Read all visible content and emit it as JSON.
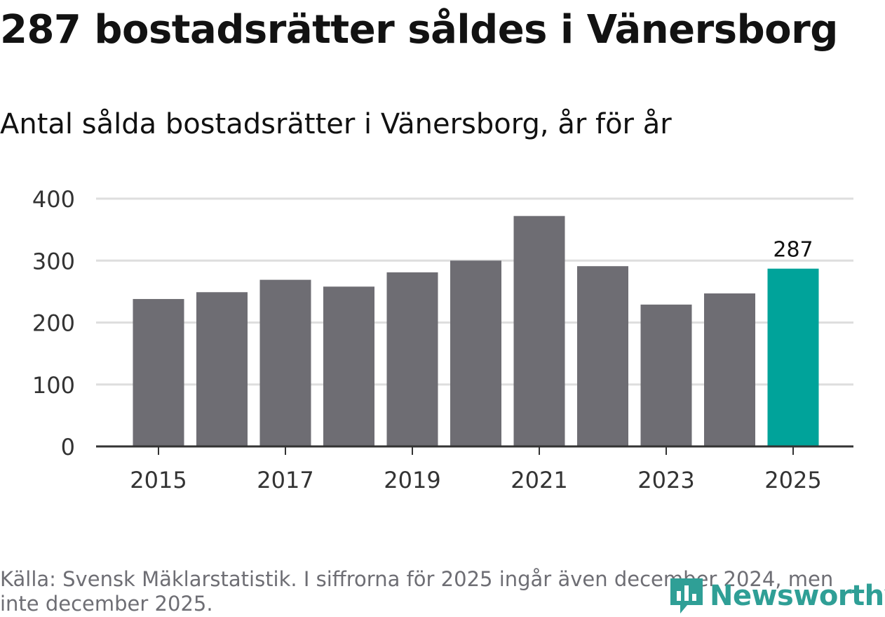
{
  "title": "287 bostadsrätter såldes i Vänersborg",
  "subtitle": "Antal sålda bostadsrätter i Vänersborg, år för år",
  "source": "Källa: Svensk Mäklarstatistik. I siffrorna för 2025 ingår även december 2024, men inte december 2025.",
  "logo": {
    "text": "Newsworthy"
  },
  "colors": {
    "bar": "#6e6d73",
    "highlight": "#00a39a",
    "grid": "#dedede",
    "axis": "#333333"
  },
  "chart_data": {
    "type": "bar",
    "categories": [
      "2015",
      "2016",
      "2017",
      "2018",
      "2019",
      "2020",
      "2021",
      "2022",
      "2023",
      "2024",
      "2025"
    ],
    "values": [
      238,
      249,
      269,
      258,
      281,
      300,
      372,
      291,
      229,
      247,
      287
    ],
    "x_tick_labels": [
      "2015",
      "2017",
      "2019",
      "2021",
      "2023",
      "2025"
    ],
    "y_ticks": [
      0,
      100,
      200,
      300,
      400
    ],
    "ylim": [
      0,
      400
    ],
    "highlight_category": "2025",
    "data_labels": [
      {
        "category": "2025",
        "text": "287"
      }
    ],
    "grid": true,
    "xlabel": "",
    "ylabel": ""
  }
}
